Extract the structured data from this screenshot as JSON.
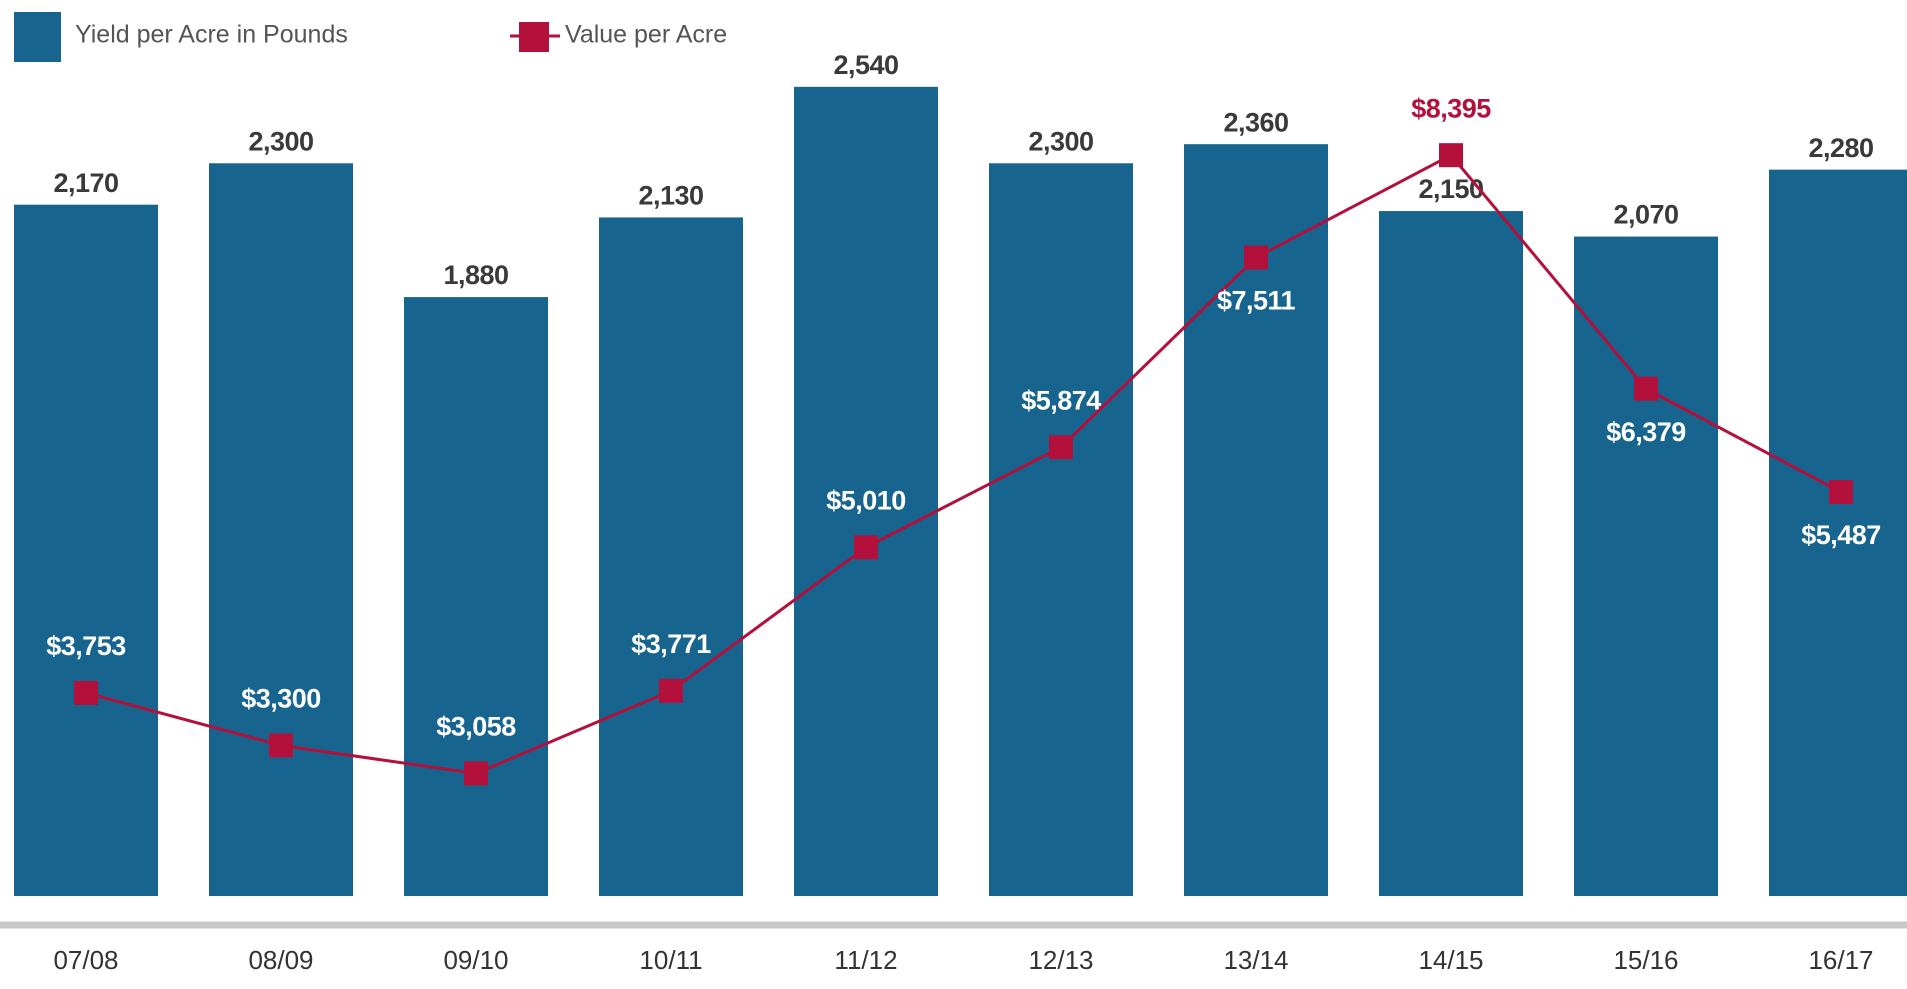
{
  "chart_data": {
    "type": "bar-line",
    "categories": [
      "07/08",
      "08/09",
      "09/10",
      "10/11",
      "11/12",
      "12/13",
      "13/14",
      "14/15",
      "15/16",
      "16/17"
    ],
    "series": [
      {
        "name": "Yield per Acre in Pounds",
        "type": "bar",
        "color": "#17648e",
        "values": [
          2170,
          2300,
          1880,
          2130,
          2540,
          2300,
          2360,
          2150,
          2070,
          2280
        ],
        "value_labels": [
          "2,170",
          "2,300",
          "1,880",
          "2,130",
          "2,540",
          "2,300",
          "2,360",
          "2,150",
          "2,070",
          "2,280"
        ]
      },
      {
        "name": "Value per Acre",
        "type": "line",
        "axis": "y2",
        "color": "#b3103c",
        "values": [
          3753,
          3300,
          3058,
          3771,
          5010,
          5874,
          7511,
          8395,
          6379,
          5487
        ],
        "value_labels": [
          "$3,753",
          "$3,300",
          "$3,058",
          "$3,771",
          "$5,010",
          "$5,874",
          "$7,511",
          "$8,395",
          "$6,379",
          "$5,487"
        ]
      }
    ],
    "ylim": [
      0,
      2800
    ],
    "y2lim": [
      2000,
      9700
    ],
    "legend": "top-left"
  }
}
